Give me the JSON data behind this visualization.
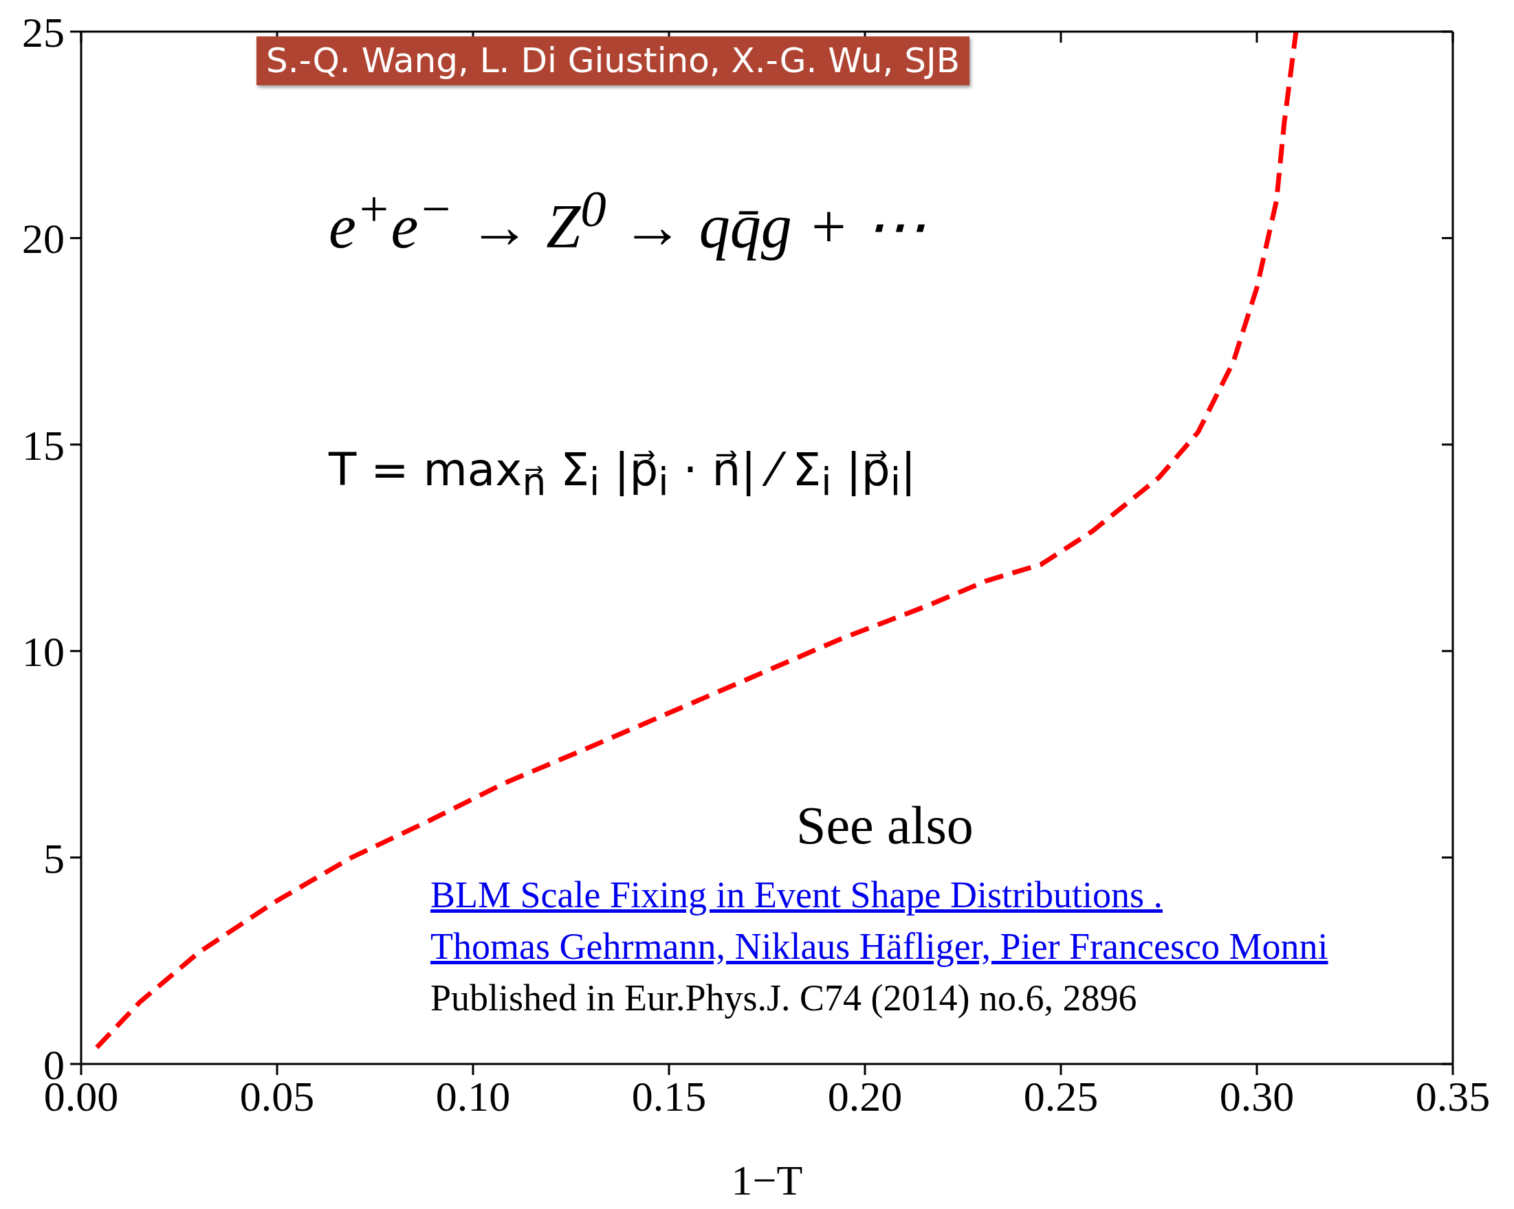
{
  "chart_data": {
    "type": "line",
    "xlabel": "1−T",
    "annotations": [
      "S.-Q. Wang, L. Di Giustino, X.-G. Wu, SJB",
      "e$^{+}$e$^{−}$ → Z$^{0}$ → qq̄g + ⋯",
      "T = max$_{n⃗}$ Σ$_{i}$ |p⃗$_{i}$ · n⃗| ⁄ Σ$_{i}$ |p⃗$_{i}$|",
      "See also",
      "BLM Scale Fixing in Event Shape Distributions .",
      "Thomas Gehrmann, Niklaus Häfliger, Pier Francesco Monni",
      "Published in Eur.Phys.J. C74 (2014) no.6, 2896"
    ],
    "x": [
      0.004,
      0.015,
      0.03,
      0.049,
      0.069,
      0.089,
      0.108,
      0.128,
      0.15,
      0.172,
      0.194,
      0.216,
      0.231,
      0.245,
      0.258,
      0.275,
      0.285,
      0.294,
      0.3,
      0.305,
      0.307,
      0.31
    ],
    "series": [
      {
        "color": "#ff0000",
        "values": [
          0.4,
          1.5,
          2.7,
          3.9,
          5.0,
          5.9,
          6.8,
          7.6,
          8.5,
          9.4,
          10.3,
          11.1,
          11.7,
          12.1,
          12.9,
          14.2,
          15.3,
          17.0,
          18.8,
          20.9,
          22.8,
          25.0
        ]
      }
    ],
    "xlim": [
      0,
      0.35
    ],
    "ylim": [
      0,
      25
    ],
    "xticks": [
      {
        "value": 0,
        "label": "0.00"
      },
      {
        "value": 0.05,
        "label": "0.05"
      },
      {
        "value": 0.1,
        "label": "0.10"
      },
      {
        "value": 0.15,
        "label": "0.15"
      },
      {
        "value": 0.2,
        "label": "0.20"
      },
      {
        "value": 0.25,
        "label": "0.25"
      },
      {
        "value": 0.3,
        "label": "0.30"
      },
      {
        "value": 0.35,
        "label": "0.35"
      }
    ],
    "yticks": [
      0,
      5,
      10,
      15,
      20,
      25
    ],
    "grid": false,
    "legend": false,
    "marker": "none",
    "line_style": "dashed"
  }
}
